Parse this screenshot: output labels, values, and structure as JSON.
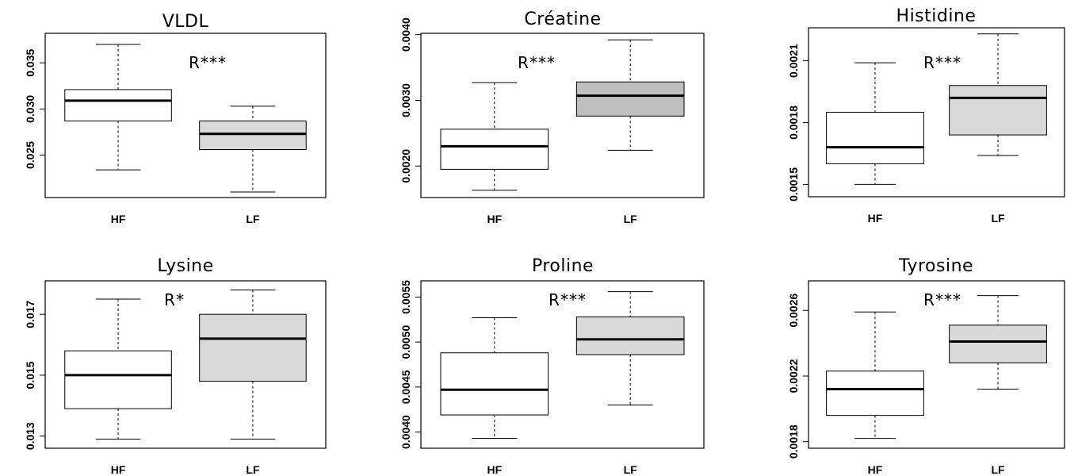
{
  "chart_data": [
    {
      "type": "boxplot",
      "title": "VLDL",
      "annotation": "R***",
      "categories": [
        "HF",
        "LF"
      ],
      "box_colors": [
        "#ffffff",
        "#d9d9d9"
      ],
      "yticks": [
        0.025,
        0.03,
        0.035
      ],
      "ytick_labels": [
        "0.025",
        "0.030",
        "0.035"
      ],
      "ylim": [
        0.0204,
        0.0382
      ],
      "boxes": [
        {
          "name": "HF",
          "whisker_low": 0.0234,
          "q1": 0.0287,
          "median": 0.0309,
          "q3": 0.0321,
          "whisker_high": 0.037
        },
        {
          "name": "LF",
          "whisker_low": 0.021,
          "q1": 0.0256,
          "median": 0.0273,
          "q3": 0.0287,
          "whisker_high": 0.0303
        }
      ]
    },
    {
      "type": "boxplot",
      "title": "Créatine",
      "annotation": "R***",
      "categories": [
        "HF",
        "LF"
      ],
      "box_colors": [
        "#ffffff",
        "#bfbfbf"
      ],
      "yticks": [
        0.002,
        0.003,
        0.004
      ],
      "ytick_labels": [
        "0.0020",
        "0.0030",
        "0.0040"
      ],
      "ylim": [
        0.00152,
        0.00402
      ],
      "boxes": [
        {
          "name": "HF",
          "whisker_low": 0.00163,
          "q1": 0.00195,
          "median": 0.0023,
          "q3": 0.00256,
          "whisker_high": 0.00327
        },
        {
          "name": "LF",
          "whisker_low": 0.00224,
          "q1": 0.00276,
          "median": 0.00307,
          "q3": 0.00328,
          "whisker_high": 0.00392
        }
      ]
    },
    {
      "type": "boxplot",
      "title": "Histidine",
      "annotation": "R***",
      "categories": [
        "HF",
        "LF"
      ],
      "box_colors": [
        "#ffffff",
        "#d9d9d9"
      ],
      "yticks": [
        0.0015,
        0.0018,
        0.0021
      ],
      "ytick_labels": [
        "0.0015",
        "0.0018",
        "0.0021"
      ],
      "ylim": [
        0.00144,
        0.00226
      ],
      "boxes": [
        {
          "name": "HF",
          "whisker_low": 0.0015,
          "q1": 0.0016,
          "median": 0.00168,
          "q3": 0.00185,
          "whisker_high": 0.00209
        },
        {
          "name": "LF",
          "whisker_low": 0.00164,
          "q1": 0.00174,
          "median": 0.00192,
          "q3": 0.00198,
          "whisker_high": 0.00223
        }
      ]
    },
    {
      "type": "boxplot",
      "title": "Lysine",
      "annotation": "R*",
      "categories": [
        "HF",
        "LF"
      ],
      "box_colors": [
        "#ffffff",
        "#d9d9d9"
      ],
      "yticks": [
        0.013,
        0.015,
        0.017
      ],
      "ytick_labels": [
        "0.013",
        "0.015",
        "0.017"
      ],
      "ylim": [
        0.0126,
        0.0181
      ],
      "boxes": [
        {
          "name": "HF",
          "whisker_low": 0.0129,
          "q1": 0.0139,
          "median": 0.015,
          "q3": 0.0158,
          "whisker_high": 0.0175
        },
        {
          "name": "LF",
          "whisker_low": 0.0129,
          "q1": 0.0148,
          "median": 0.0162,
          "q3": 0.017,
          "whisker_high": 0.0178
        }
      ]
    },
    {
      "type": "boxplot",
      "title": "Proline",
      "annotation": "R***",
      "categories": [
        "HF",
        "LF"
      ],
      "box_colors": [
        "#ffffff",
        "#d9d9d9"
      ],
      "yticks": [
        0.004,
        0.0045,
        0.005,
        0.0055
      ],
      "ytick_labels": [
        "0.0040",
        "0.0045",
        "0.0050",
        "0.0055"
      ],
      "ylim": [
        0.00382,
        0.00568
      ],
      "boxes": [
        {
          "name": "HF",
          "whisker_low": 0.00393,
          "q1": 0.00419,
          "median": 0.00447,
          "q3": 0.00488,
          "whisker_high": 0.00527
        },
        {
          "name": "LF",
          "whisker_low": 0.0043,
          "q1": 0.00486,
          "median": 0.00503,
          "q3": 0.00528,
          "whisker_high": 0.00556
        }
      ]
    },
    {
      "type": "boxplot",
      "title": "Tyrosine",
      "annotation": "R***",
      "categories": [
        "HF",
        "LF"
      ],
      "box_colors": [
        "#ffffff",
        "#d9d9d9"
      ],
      "yticks": [
        0.0018,
        0.0022,
        0.0026
      ],
      "ytick_labels": [
        "0.0018",
        "0.0022",
        "0.0026"
      ],
      "ylim": [
        0.00176,
        0.00278
      ],
      "boxes": [
        {
          "name": "HF",
          "whisker_low": 0.00182,
          "q1": 0.00196,
          "median": 0.00212,
          "q3": 0.00223,
          "whisker_high": 0.00259
        },
        {
          "name": "LF",
          "whisker_low": 0.00212,
          "q1": 0.00228,
          "median": 0.00241,
          "q3": 0.00251,
          "whisker_high": 0.00269
        }
      ]
    }
  ]
}
